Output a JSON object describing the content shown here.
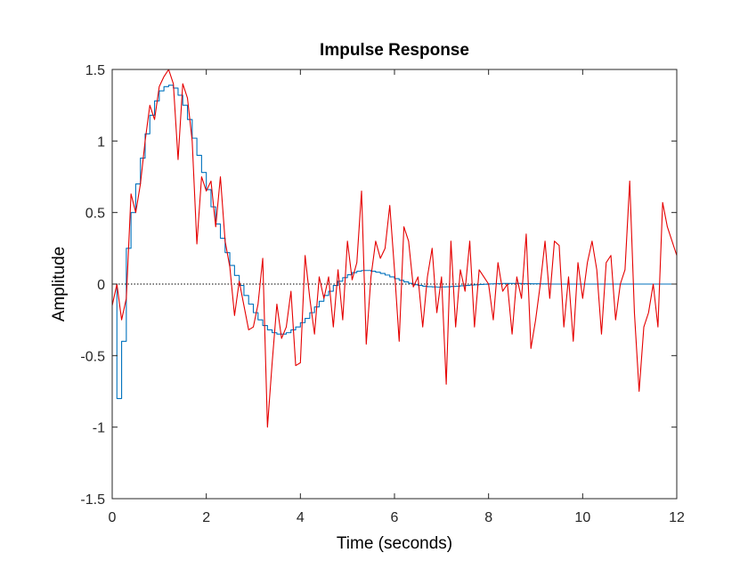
{
  "chart_data": {
    "type": "line",
    "title": "Impulse Response",
    "xlabel": "Time (seconds)",
    "ylabel": "Amplitude",
    "xlim": [
      0,
      12
    ],
    "ylim": [
      -1.5,
      1.5
    ],
    "xticks": [
      0,
      2,
      4,
      6,
      8,
      10,
      12
    ],
    "yticks": [
      1.5,
      1,
      0.5,
      0,
      -0.5,
      -1,
      -1.5
    ],
    "xtick_labels": [
      "0",
      "2",
      "4",
      "6",
      "8",
      "10",
      "12"
    ],
    "ytick_labels": [
      "1.5",
      "1",
      "0.5",
      "0",
      "-0.5",
      "-1",
      "-1.5"
    ],
    "grid": false,
    "zero_line": {
      "y": 0,
      "style": "dotted",
      "color": "#000000"
    },
    "series": [
      {
        "kind": "stairs",
        "color": "#0072BD",
        "dt": 0.1,
        "values": [
          0,
          -0.8,
          -0.4,
          0.25,
          0.5,
          0.7,
          0.88,
          1.05,
          1.18,
          1.28,
          1.35,
          1.38,
          1.39,
          1.37,
          1.32,
          1.25,
          1.15,
          1.02,
          0.9,
          0.78,
          0.66,
          0.54,
          0.42,
          0.32,
          0.22,
          0.13,
          0.06,
          -0.01,
          -0.08,
          -0.14,
          -0.2,
          -0.25,
          -0.29,
          -0.32,
          -0.34,
          -0.35,
          -0.35,
          -0.34,
          -0.32,
          -0.3,
          -0.27,
          -0.24,
          -0.2,
          -0.16,
          -0.12,
          -0.08,
          -0.05,
          -0.01,
          0.02,
          0.045,
          0.065,
          0.08,
          0.09,
          0.095,
          0.095,
          0.09,
          0.083,
          0.074,
          0.063,
          0.05,
          0.038,
          0.026,
          0.015,
          0.005,
          -0.004,
          -0.01,
          -0.015,
          -0.018,
          -0.02,
          -0.021,
          -0.02,
          -0.019,
          -0.017,
          -0.015,
          -0.012,
          -0.01,
          -0.007,
          -0.005,
          -0.003,
          -0.001,
          0.001,
          0.002,
          0.003,
          0.004,
          0.004,
          0.004,
          0.004,
          0.003,
          0.003,
          0.002,
          0.002,
          0.001,
          0.001,
          0.0,
          0.0,
          0.0,
          0.0,
          0.0,
          0.0,
          0.0,
          0.0,
          0.0,
          0.0,
          0.0,
          0.0,
          0.0,
          0.0,
          0.0,
          0.0,
          0.0,
          0.0,
          0.0,
          0.0,
          0.0,
          0.0,
          0.0,
          0.0,
          0.0,
          0.0,
          0.0
        ]
      },
      {
        "kind": "line",
        "color": "#E50000",
        "x": [
          0,
          0.1,
          0.2,
          0.3,
          0.4,
          0.5,
          0.6,
          0.7,
          0.8,
          0.9,
          1.0,
          1.1,
          1.2,
          1.3,
          1.4,
          1.5,
          1.6,
          1.7,
          1.8,
          1.9,
          2.0,
          2.1,
          2.2,
          2.3,
          2.4,
          2.5,
          2.6,
          2.7,
          2.8,
          2.9,
          3.0,
          3.1,
          3.2,
          3.3,
          3.4,
          3.5,
          3.6,
          3.7,
          3.8,
          3.9,
          4.0,
          4.1,
          4.2,
          4.3,
          4.4,
          4.5,
          4.6,
          4.7,
          4.8,
          4.9,
          5.0,
          5.1,
          5.2,
          5.3,
          5.4,
          5.5,
          5.6,
          5.7,
          5.8,
          5.9,
          6.0,
          6.1,
          6.2,
          6.3,
          6.4,
          6.5,
          6.6,
          6.7,
          6.8,
          6.9,
          7.0,
          7.1,
          7.2,
          7.3,
          7.4,
          7.5,
          7.6,
          7.7,
          7.8,
          7.9,
          8.0,
          8.1,
          8.2,
          8.3,
          8.4,
          8.5,
          8.6,
          8.7,
          8.8,
          8.9,
          9.0,
          9.1,
          9.2,
          9.3,
          9.4,
          9.5,
          9.6,
          9.7,
          9.8,
          9.9,
          10.0,
          10.1,
          10.2,
          10.3,
          10.4,
          10.5,
          10.6,
          10.7,
          10.8,
          10.9,
          11.0,
          11.1,
          11.2,
          11.3,
          11.4,
          11.5,
          11.6,
          11.7,
          11.8,
          11.9,
          12.0
        ],
        "y": [
          -0.15,
          0.0,
          -0.25,
          -0.1,
          0.63,
          0.5,
          0.7,
          1.0,
          1.25,
          1.15,
          1.38,
          1.45,
          1.5,
          1.4,
          0.87,
          1.4,
          1.3,
          1.0,
          0.28,
          0.75,
          0.65,
          0.72,
          0.4,
          0.75,
          0.3,
          0.12,
          -0.22,
          0.02,
          -0.15,
          -0.32,
          -0.3,
          -0.14,
          0.18,
          -1.0,
          -0.55,
          -0.14,
          -0.38,
          -0.3,
          -0.05,
          -0.57,
          -0.55,
          0.2,
          -0.1,
          -0.35,
          0.05,
          -0.1,
          0.05,
          -0.3,
          0.1,
          -0.25,
          0.3,
          0.03,
          0.15,
          0.65,
          -0.42,
          0.05,
          0.3,
          0.18,
          0.25,
          0.55,
          0.1,
          -0.4,
          0.4,
          0.3,
          -0.02,
          0.05,
          -0.3,
          0.05,
          0.25,
          -0.2,
          0.05,
          -0.7,
          0.3,
          -0.3,
          0.1,
          -0.05,
          0.3,
          -0.3,
          0.1,
          0.05,
          0.0,
          -0.25,
          0.15,
          -0.05,
          0.0,
          -0.35,
          0.05,
          -0.1,
          0.35,
          -0.45,
          -0.25,
          0.0,
          0.3,
          -0.1,
          0.3,
          0.27,
          -0.3,
          0.05,
          -0.4,
          0.15,
          -0.1,
          0.15,
          0.3,
          0.1,
          -0.35,
          0.15,
          0.2,
          -0.25,
          0.0,
          0.1,
          0.72,
          -0.2,
          -0.75,
          -0.3,
          -0.2,
          0.0,
          -0.3,
          0.57,
          0.4,
          0.3,
          0.2
        ]
      }
    ]
  }
}
